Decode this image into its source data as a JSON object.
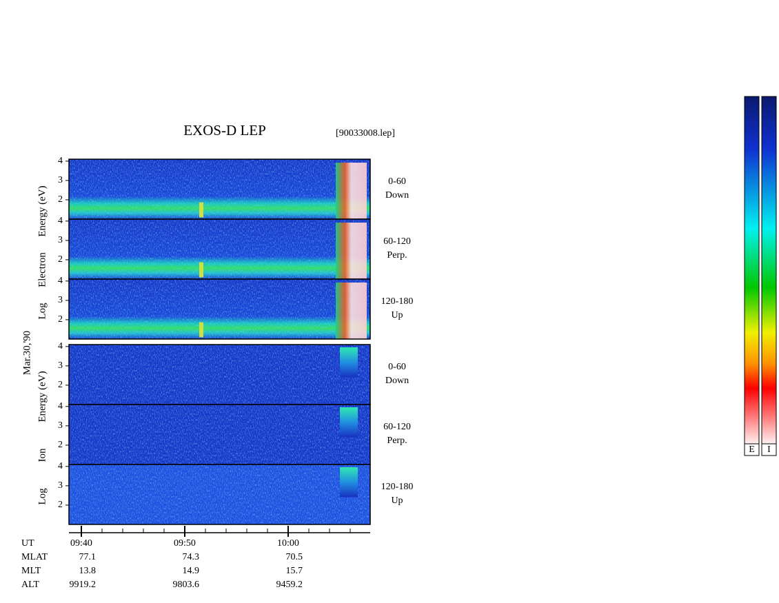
{
  "header": {
    "title": "EXOS-D LEP",
    "file": "[90033008.lep]"
  },
  "date": "Mar.30,'90",
  "electron": {
    "label_parts": [
      "Log",
      "Electron",
      "Energy (eV)"
    ],
    "panels": [
      {
        "angle": "0-60",
        "direction": "Down"
      },
      {
        "angle": "60-120",
        "direction": "Perp."
      },
      {
        "angle": "120-180",
        "direction": "Up"
      }
    ]
  },
  "ion": {
    "label_parts": [
      "Log",
      "Ion",
      "Energy (eV)"
    ],
    "panels": [
      {
        "angle": "0-60",
        "direction": "Down"
      },
      {
        "angle": "60-120",
        "direction": "Perp."
      },
      {
        "angle": "120-180",
        "direction": "Up"
      }
    ]
  },
  "ylim": [
    1,
    4.1
  ],
  "yticks": [
    2,
    3,
    4
  ],
  "time_ticks": [
    "09:40",
    "09:50",
    "10:00"
  ],
  "orbit": {
    "rows": [
      {
        "name": "UT",
        "values": []
      },
      {
        "name": "MLAT",
        "values": [
          "77.1",
          "74.3",
          "70.5"
        ]
      },
      {
        "name": "MLT",
        "values": [
          "13.8",
          "14.9",
          "15.7"
        ]
      },
      {
        "name": "ALT",
        "values": [
          "9919.2",
          "9803.6",
          "9459.2"
        ]
      }
    ]
  },
  "colorbars": [
    "E",
    "I"
  ]
}
